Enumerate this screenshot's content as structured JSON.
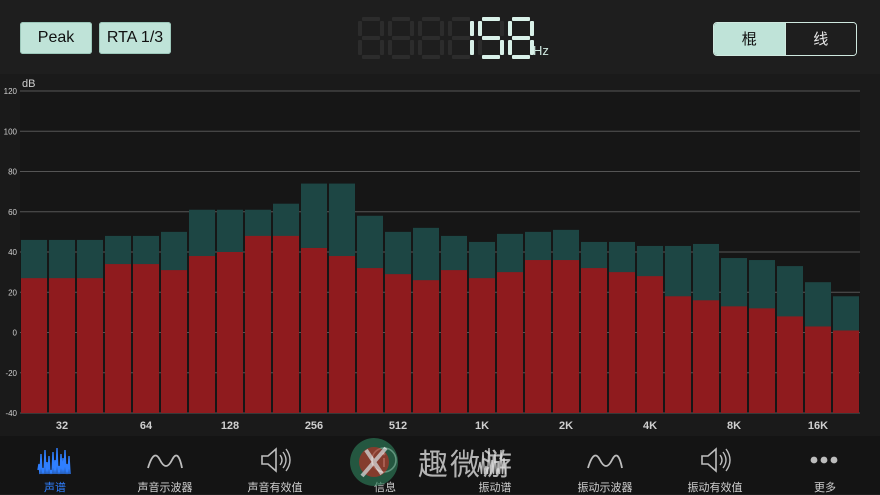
{
  "toolbar": {
    "peak_label": "Peak",
    "rta_label": "RTA 1/3",
    "frequency_value": "158",
    "frequency_unit": "Hz",
    "mode_bar_label": "棍",
    "mode_line_label": "线"
  },
  "colors": {
    "peak_bar": "#1d4644",
    "level_bar": "#8f1b1e",
    "accent": "#bfe3d8",
    "active_nav": "#2f7fff",
    "led": "#2aa10c"
  },
  "chart_data": {
    "type": "bar",
    "ylabel": "dB",
    "ylim": [
      -40,
      120
    ],
    "yticks": [
      -40,
      -20,
      0,
      20,
      40,
      60,
      80,
      100,
      120
    ],
    "xtick_labels": [
      "32",
      "64",
      "128",
      "256",
      "512",
      "1K",
      "2K",
      "4K",
      "8K",
      "16K"
    ],
    "xtick_band_index": [
      1.5,
      4.5,
      7.5,
      10.5,
      13.5,
      16.5,
      19.5,
      22.5,
      25.5,
      28.5
    ],
    "band_count": 30,
    "series": [
      {
        "values": [
          27,
          27,
          27,
          34,
          34,
          31,
          38,
          40,
          48,
          48,
          42,
          38,
          32,
          29,
          26,
          31,
          27,
          30,
          36,
          36,
          32,
          30,
          28,
          18,
          16,
          13,
          12,
          8,
          3,
          1
        ]
      },
      {
        "values": [
          46,
          46,
          46,
          48,
          48,
          50,
          61,
          61,
          61,
          64,
          74,
          74,
          58,
          50,
          52,
          48,
          45,
          49,
          50,
          51,
          45,
          45,
          43,
          43,
          44,
          37,
          36,
          33,
          25,
          18
        ]
      }
    ]
  },
  "watermark": {
    "text": "趣微游"
  },
  "nav": [
    {
      "label": "声谱",
      "icon": "spectrum-icon",
      "active": true
    },
    {
      "label": "声音示波器",
      "icon": "waveform-icon",
      "active": false
    },
    {
      "label": "声音有效值",
      "icon": "speaker-icon",
      "active": false
    },
    {
      "label": "信息",
      "icon": "info-icon",
      "active": false
    },
    {
      "label": "振动谱",
      "icon": "vibration-spectrum-icon",
      "active": false
    },
    {
      "label": "振动示波器",
      "icon": "waveform-icon",
      "active": false
    },
    {
      "label": "振动有效值",
      "icon": "speaker-icon",
      "active": false
    },
    {
      "label": "更多",
      "icon": "more-icon",
      "active": false
    }
  ]
}
